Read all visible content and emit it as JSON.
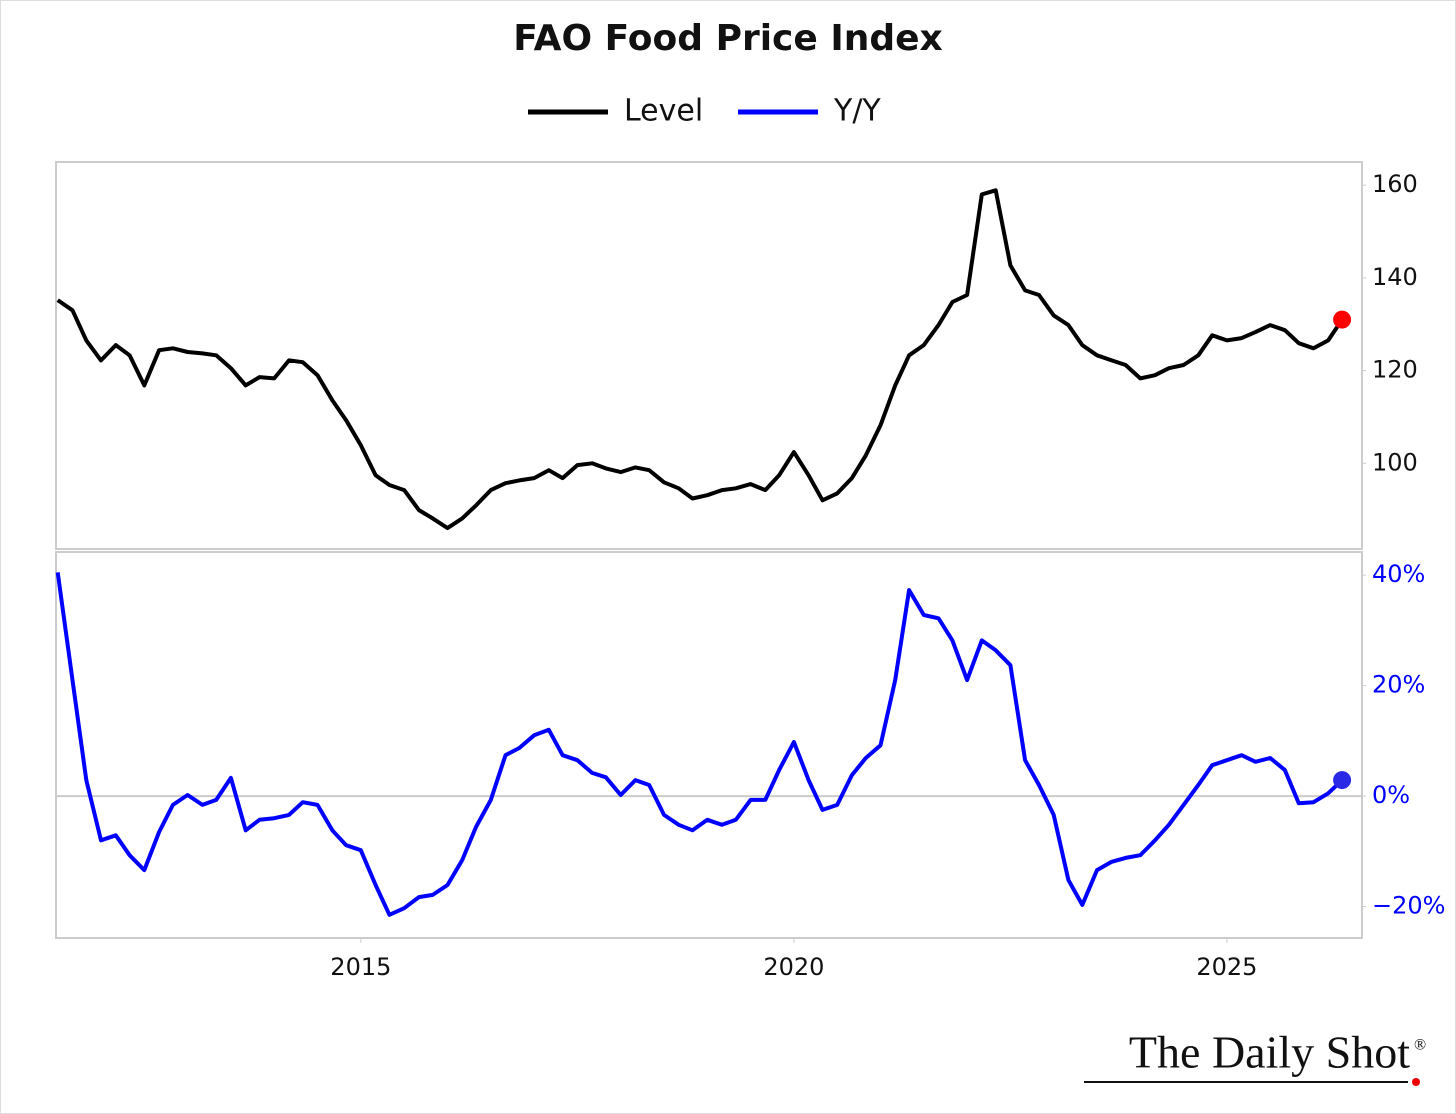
{
  "chart_data": [
    {
      "type": "line",
      "title": "FAO Food Price Index",
      "x": [
        2011.5,
        2011.67,
        2011.83,
        2012,
        2012.17,
        2012.33,
        2012.5,
        2012.67,
        2012.83,
        2013,
        2013.17,
        2013.33,
        2013.5,
        2013.67,
        2013.83,
        2014,
        2014.17,
        2014.33,
        2014.5,
        2014.67,
        2014.83,
        2015,
        2015.17,
        2015.33,
        2015.5,
        2015.67,
        2015.83,
        2016,
        2016.17,
        2016.33,
        2016.5,
        2016.67,
        2016.83,
        2017,
        2017.17,
        2017.33,
        2017.5,
        2017.67,
        2017.83,
        2018,
        2018.17,
        2018.33,
        2018.5,
        2018.67,
        2018.83,
        2019,
        2019.17,
        2019.33,
        2019.5,
        2019.67,
        2019.83,
        2020,
        2020.17,
        2020.33,
        2020.5,
        2020.67,
        2020.83,
        2021,
        2021.17,
        2021.33,
        2021.5,
        2021.67,
        2021.83,
        2022,
        2022.17,
        2022.33,
        2022.5,
        2022.67,
        2022.83,
        2023,
        2023.17,
        2023.33,
        2023.5,
        2023.67,
        2023.83,
        2024,
        2024.17,
        2024.33,
        2024.5,
        2024.67,
        2024.83,
        2025,
        2025.17,
        2025.33,
        2025.5,
        2025.67,
        2025.83,
        2026,
        2026.17,
        2026.33
      ],
      "xlim": [
        2011.48,
        2026.56
      ],
      "series": [
        {
          "name": "Level",
          "color": "#000000",
          "last_point_color": "#ff0000",
          "values": [
            135.2,
            133,
            126.5,
            122.2,
            125.5,
            123.3,
            116.8,
            124.4,
            124.8,
            124,
            123.7,
            123.3,
            120.5,
            116.8,
            118.6,
            118.3,
            122.2,
            121.8,
            119,
            113.6,
            109.3,
            103.9,
            97.4,
            95.3,
            94.2,
            89.9,
            88.1,
            86,
            88.1,
            90.9,
            94.2,
            95.7,
            96.3,
            96.8,
            98.5,
            96.8,
            99.6,
            100,
            98.9,
            98.1,
            99.1,
            98.5,
            95.9,
            94.6,
            92.4,
            93.1,
            94.2,
            94.6,
            95.5,
            94.2,
            97.4,
            102.4,
            97.4,
            92,
            93.5,
            96.8,
            101.7,
            108.2,
            116.8,
            123.3,
            125.5,
            129.8,
            134.8,
            136.3,
            158,
            158.9,
            142.7,
            137.3,
            136.3,
            131.9,
            129.8,
            125.5,
            123.3,
            122.2,
            121.2,
            118.3,
            119,
            120.5,
            121.2,
            123.3,
            127.6,
            126.5,
            127,
            128.3,
            129.8,
            128.7,
            125.9,
            124.8,
            126.5,
            131
          ]
        }
      ],
      "ylim": [
        81.5,
        165
      ],
      "yticks": [
        100,
        120,
        140,
        160
      ],
      "ytick_color": "#111111"
    },
    {
      "type": "line",
      "x": [
        2011.5,
        2011.67,
        2011.83,
        2012,
        2012.17,
        2012.33,
        2012.5,
        2012.67,
        2012.83,
        2013,
        2013.17,
        2013.33,
        2013.5,
        2013.67,
        2013.83,
        2014,
        2014.17,
        2014.33,
        2014.5,
        2014.67,
        2014.83,
        2015,
        2015.17,
        2015.33,
        2015.5,
        2015.67,
        2015.83,
        2016,
        2016.17,
        2016.33,
        2016.5,
        2016.67,
        2016.83,
        2017,
        2017.17,
        2017.33,
        2017.5,
        2017.67,
        2017.83,
        2018,
        2018.17,
        2018.33,
        2018.5,
        2018.67,
        2018.83,
        2019,
        2019.17,
        2019.33,
        2019.5,
        2019.67,
        2019.83,
        2020,
        2020.17,
        2020.33,
        2020.5,
        2020.67,
        2020.83,
        2021,
        2021.17,
        2021.33,
        2021.5,
        2021.67,
        2021.83,
        2022,
        2022.17,
        2022.33,
        2022.5,
        2022.67,
        2022.83,
        2023,
        2023.17,
        2023.33,
        2023.5,
        2023.67,
        2023.83,
        2024,
        2024.17,
        2024.33,
        2024.5,
        2024.67,
        2024.83,
        2025,
        2025.17,
        2025.33,
        2025.5,
        2025.67,
        2025.83,
        2026,
        2026.17,
        2026.33
      ],
      "xlim": [
        2011.48,
        2026.56
      ],
      "xticks": [
        2015,
        2020,
        2025
      ],
      "series": [
        {
          "name": "Y/Y",
          "color": "#0000ff",
          "last_point_color": "#2a2ae6",
          "values": [
            40.5,
            21,
            2.9,
            -8,
            -7.1,
            -10.7,
            -13.4,
            -6.5,
            -1.6,
            0.2,
            -1.6,
            -0.7,
            3.3,
            -6.2,
            -4.3,
            -4,
            -3.4,
            -1.1,
            -1.6,
            -6.2,
            -8.9,
            -9.8,
            -16.1,
            -21.5,
            -20.3,
            -18.3,
            -17.9,
            -16.1,
            -11.6,
            -5.6,
            -0.7,
            7.4,
            8.7,
            11,
            12,
            7.4,
            6.5,
            4.2,
            3.4,
            0.2,
            2.9,
            2,
            -3.4,
            -5.2,
            -6.2,
            -4.3,
            -5.2,
            -4.3,
            -0.7,
            -0.7,
            4.7,
            9.8,
            2.9,
            -2.5,
            -1.6,
            3.8,
            6.9,
            9.2,
            21,
            37.3,
            32.8,
            32.2,
            28.2,
            21,
            28.2,
            26.4,
            23.7,
            6.5,
            2,
            -3.4,
            -15.2,
            -19.7,
            -13.4,
            -11.9,
            -11.2,
            -10.7,
            -8,
            -5.2,
            -1.6,
            2,
            5.6,
            6.5,
            7.4,
            6.2,
            6.9,
            4.7,
            -1.3,
            -1.1,
            0.5,
            2.9
          ]
        }
      ],
      "ylim": [
        -25.7,
        44.2
      ],
      "yticks": [
        {
          "value": -20,
          "label": "−20%"
        },
        {
          "value": 0,
          "label": "0%"
        },
        {
          "value": 20,
          "label": "20%"
        },
        {
          "value": 40,
          "label": "40%"
        }
      ],
      "ytick_color": "#0000ff",
      "reference_line": 0
    }
  ],
  "logo": "The Daily Shot",
  "logo_mark": "®"
}
